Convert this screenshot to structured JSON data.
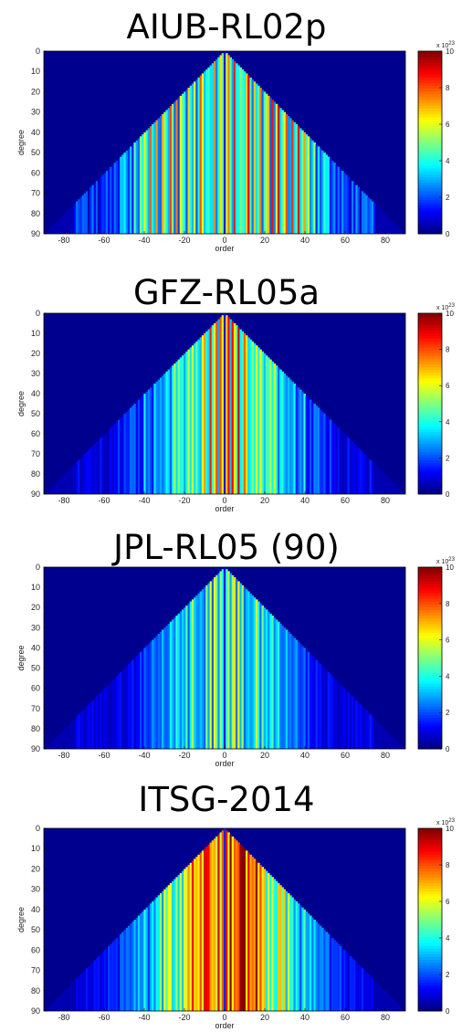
{
  "chart_data": [
    {
      "type": "heatmap",
      "title": "AIUB-RL02p",
      "xlabel": "order",
      "ylabel": "degree",
      "xlim": [
        -90,
        90
      ],
      "ylim": [
        90,
        0
      ],
      "xticks": [
        "-80",
        "-60",
        "-40",
        "-20",
        "0",
        "20",
        "40",
        "60",
        "80"
      ],
      "yticks": [
        "0",
        "10",
        "20",
        "30",
        "40",
        "50",
        "60",
        "70",
        "80",
        "90"
      ],
      "colorbar": {
        "label": "x 10^23",
        "exponent_text": "x 10",
        "exponent_power": "23",
        "ticks": [
          "0",
          "2",
          "4",
          "6",
          "8",
          "10"
        ],
        "range": [
          0,
          10
        ],
        "colormap": "jet"
      },
      "shape": "triangle",
      "apex_degree": 0,
      "triangle_degree_at_edge": 90,
      "column_values": [
        0.9,
        5.6,
        7.5,
        4.6,
        2.9,
        8.4,
        3.9,
        4.0,
        5.0,
        4.5,
        3.7,
        6.8,
        9.0,
        4.4,
        2.4,
        6.8,
        3.5,
        4.6,
        7.6,
        2.3,
        4.5,
        5.5,
        6.9,
        2.2,
        8.6,
        2.6,
        5.8,
        9.2,
        3.4,
        4.6,
        5.9,
        8.0,
        2.6,
        2.8,
        8.3,
        3.5,
        4.4,
        8.8,
        3.4,
        4.8,
        7.2,
        4.3,
        5.8,
        2.6,
        3.3,
        5.4,
        1.6,
        3.7,
        2.0,
        3.0,
        4.2,
        3.6,
        3.7,
        1.3,
        2.1,
        2.7,
        1.2,
        2.4,
        1.5,
        2.7,
        1.8,
        2.0,
        1.5,
        0.6,
        2.5,
        1.2,
        2.8,
        2.0,
        0.5,
        2.4,
        2.5,
        2.6,
        1.9,
        2.3,
        2.7,
        1.5,
        0.5,
        0.3,
        0.3,
        0.3,
        0.2,
        0.3,
        0.2,
        0.3,
        0.3,
        0.3,
        0.2,
        0.1,
        0.1,
        0.1,
        0.1
      ],
      "negative_order_scale": 0.88
    },
    {
      "type": "heatmap",
      "title": "GFZ-RL05a",
      "xlabel": "order",
      "ylabel": "degree",
      "xlim": [
        -90,
        90
      ],
      "ylim": [
        90,
        0
      ],
      "xticks": [
        "-80",
        "-60",
        "-40",
        "-20",
        "0",
        "20",
        "40",
        "60",
        "80"
      ],
      "yticks": [
        "0",
        "10",
        "20",
        "30",
        "40",
        "50",
        "60",
        "70",
        "80",
        "90"
      ],
      "colorbar": {
        "label": "x 10^23",
        "exponent_text": "x 10",
        "exponent_power": "23",
        "ticks": [
          "0",
          "2",
          "4",
          "6",
          "8",
          "10"
        ],
        "range": [
          0,
          10
        ],
        "colormap": "jet"
      },
      "shape": "triangle",
      "apex_degree": 0,
      "triangle_degree_at_edge": 90,
      "column_values": [
        1.2,
        6.8,
        8.7,
        3.2,
        8.7,
        6.4,
        4.8,
        9.2,
        3.7,
        4.2,
        7.8,
        6.5,
        3.4,
        3.8,
        5.2,
        3.8,
        6.3,
        3.9,
        6.1,
        4.4,
        3.2,
        4.6,
        4.4,
        5.5,
        3.8,
        5.8,
        4.2,
        2.3,
        3.7,
        4.2,
        3.1,
        2.6,
        3.2,
        2.7,
        2.9,
        3.9,
        1.5,
        2.2,
        2.8,
        2.2,
        4.2,
        1.4,
        1.3,
        2.1,
        1.2,
        2.6,
        2.4,
        2.6,
        1.7,
        1.7,
        2.1,
        1.1,
        1.1,
        2.1,
        1.2,
        1.3,
        0.8,
        1.4,
        0.7,
        0.6,
        0.7,
        0.9,
        1.6,
        0.7,
        1.0,
        1.1,
        0.8,
        1.2,
        1.4,
        1.3,
        1.1,
        0.8,
        0.6,
        1.6,
        1.1,
        0.3,
        0.2,
        0.3,
        0.2,
        0.3,
        0.3,
        0.2,
        0.2,
        0.2,
        0.3,
        0.2,
        0.1,
        0.1,
        0.1,
        0.1,
        0.1
      ],
      "negative_order_scale": 0.92
    },
    {
      "type": "heatmap",
      "title": "JPL-RL05 (90)",
      "xlabel": "order",
      "ylabel": "degree",
      "xlim": [
        -90,
        90
      ],
      "ylim": [
        90,
        0
      ],
      "xticks": [
        "-80",
        "-60",
        "-40",
        "-20",
        "0",
        "20",
        "40",
        "60",
        "80"
      ],
      "yticks": [
        "0",
        "10",
        "20",
        "30",
        "40",
        "50",
        "60",
        "70",
        "80",
        "90"
      ],
      "colorbar": {
        "label": "x 10^23",
        "exponent_text": "x 10",
        "exponent_power": "23",
        "ticks": [
          "0",
          "2",
          "4",
          "6",
          "8",
          "10"
        ],
        "range": [
          0,
          10
        ],
        "colormap": "jet"
      },
      "shape": "triangle",
      "apex_degree": 0,
      "triangle_degree_at_edge": 90,
      "column_values": [
        1.0,
        4.3,
        5.5,
        2.9,
        5.3,
        6.5,
        2.4,
        6.4,
        3.1,
        5.3,
        2.3,
        3.0,
        3.4,
        2.8,
        3.0,
        3.6,
        5.8,
        4.0,
        2.3,
        4.9,
        3.0,
        3.6,
        2.7,
        3.7,
        4.5,
        2.6,
        3.3,
        4.1,
        2.5,
        2.3,
        2.4,
        3.4,
        2.3,
        2.5,
        2.0,
        2.5,
        2.9,
        2.0,
        1.7,
        1.9,
        2.4,
        1.3,
        2.1,
        1.2,
        1.3,
        0.8,
        1.7,
        1.3,
        1.4,
        0.8,
        0.9,
        0.6,
        1.5,
        1.4,
        1.3,
        0.8,
        0.9,
        0.5,
        0.8,
        0.9,
        1.2,
        0.6,
        1.3,
        0.7,
        1.3,
        0.6,
        1.4,
        1.0,
        1.3,
        0.9,
        0.6,
        1.1,
        1.0,
        1.5,
        1.2,
        0.2,
        0.3,
        0.3,
        0.3,
        0.2,
        0.2,
        0.2,
        0.3,
        0.3,
        0.2,
        0.3,
        0.1,
        0.1,
        0.1,
        0.1,
        0.1
      ],
      "negative_order_scale": 0.94
    },
    {
      "type": "heatmap",
      "title": "ITSG-2014",
      "xlabel": "order",
      "ylabel": "degree",
      "xlim": [
        -90,
        90
      ],
      "ylim": [
        90,
        0
      ],
      "xticks": [
        "-80",
        "-60",
        "-40",
        "-20",
        "0",
        "20",
        "40",
        "60",
        "80"
      ],
      "yticks": [
        "0",
        "10",
        "20",
        "30",
        "40",
        "50",
        "60",
        "70",
        "80",
        "90"
      ],
      "colorbar": {
        "label": "x 10^23",
        "exponent_text": "x 10",
        "exponent_power": "23",
        "ticks": [
          "0",
          "2",
          "4",
          "6",
          "8",
          "10"
        ],
        "range": [
          0,
          10
        ],
        "colormap": "jet"
      },
      "shape": "triangle",
      "apex_degree": 0,
      "triangle_degree_at_edge": 90,
      "column_values": [
        1.6,
        8.7,
        6.1,
        10.0,
        6.3,
        7.9,
        7.5,
        8.0,
        9.7,
        9.9,
        10.0,
        6.4,
        8.9,
        7.1,
        7.7,
        7.3,
        9.8,
        6.5,
        8.1,
        6.4,
        6.9,
        3.6,
        6.4,
        3.8,
        6.0,
        4.0,
        3.8,
        6.8,
        6.9,
        4.8,
        6.8,
        3.1,
        5.8,
        4.0,
        4.3,
        2.8,
        4.1,
        3.3,
        2.0,
        3.4,
        4.6,
        2.9,
        2.8,
        3.8,
        2.4,
        3.5,
        2.6,
        2.2,
        2.6,
        2.7,
        2.0,
        2.6,
        2.5,
        1.0,
        1.9,
        1.7,
        1.8,
        1.7,
        2.1,
        1.2,
        1.6,
        1.3,
        0.8,
        1.6,
        1.5,
        1.6,
        1.0,
        1.0,
        1.1,
        1.6,
        0.9,
        1.0,
        1.1,
        0.9,
        1.2,
        0.3,
        0.3,
        0.3,
        0.3,
        0.3,
        0.2,
        0.3,
        0.3,
        0.3,
        0.3,
        0.3,
        0.1,
        0.1,
        0.1,
        0.1,
        0.1
      ],
      "negative_order_scale": 0.9
    }
  ]
}
